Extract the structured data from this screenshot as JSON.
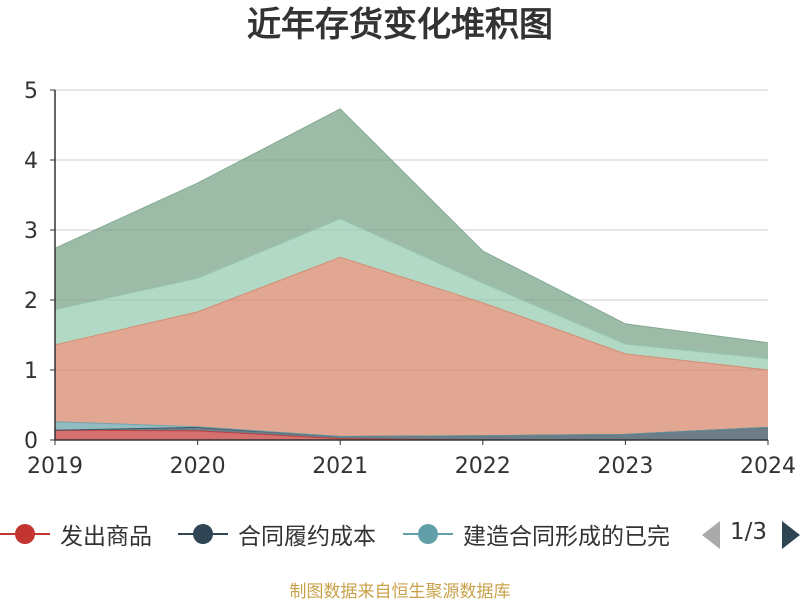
{
  "title": "近年存货变化堆积图",
  "chart_data": {
    "type": "area",
    "stacked": true,
    "title": "近年存货变化堆积图",
    "categories": [
      "2019",
      "2020",
      "2021",
      "2022",
      "2023",
      "2024"
    ],
    "ylim": [
      0,
      5
    ],
    "yticks": [
      "0",
      "1",
      "2",
      "3",
      "4",
      "5"
    ],
    "grid": "horizontal",
    "legend_position": "bottom",
    "series": [
      {
        "name": "发出商品",
        "color": "#c23531",
        "values": [
          0.14,
          0.13,
          0.02,
          0.0,
          0.0,
          0.0
        ]
      },
      {
        "name": "合同履约成本",
        "color": "#2f4554",
        "values": [
          0.0,
          0.05,
          0.03,
          0.06,
          0.08,
          0.18
        ]
      },
      {
        "name": "建造合同形成的已完",
        "color": "#61a0a8",
        "values": [
          0.12,
          0.01,
          0.0,
          0.0,
          0.0,
          0.0
        ]
      },
      {
        "color": "#d48265",
        "values": [
          1.1,
          1.64,
          2.56,
          1.9,
          1.15,
          0.82
        ]
      },
      {
        "color": "#91c7ae",
        "values": [
          0.5,
          0.48,
          0.55,
          0.28,
          0.14,
          0.16
        ]
      },
      {
        "color": "#749f83",
        "values": [
          0.88,
          1.36,
          1.57,
          0.46,
          0.29,
          0.23
        ]
      }
    ]
  },
  "legend": {
    "pager": "1/3",
    "pager_prev_color": "#aaaaaa",
    "pager_next_color": "#2f4554",
    "prev_icon": "triangle-left-icon",
    "next_icon": "triangle-right-icon"
  },
  "footer": "制图数据来自恒生聚源数据库"
}
